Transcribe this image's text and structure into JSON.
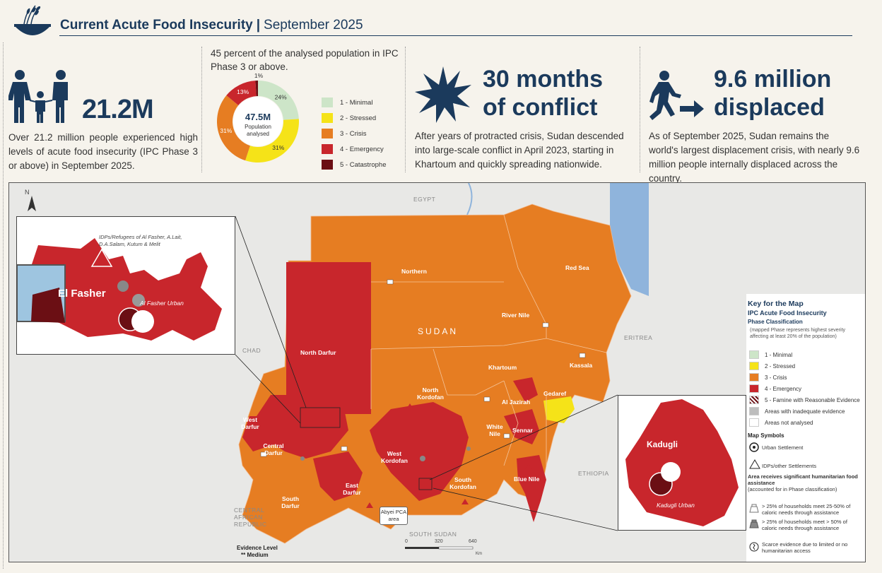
{
  "header": {
    "title": "Current Acute Food Insecurity",
    "separator": "|",
    "date": "September 2025"
  },
  "icons": {
    "logo": "wheat-bowl-icon",
    "family": "family-icon",
    "conflict": "explosion-icon",
    "displaced": "walking-person-icon"
  },
  "kpis": {
    "people": {
      "value": "21.2M",
      "text": "Over 21.2 million people experienced high levels of acute food insecurity (IPC Phase 3 or above) in September 2025."
    },
    "analysed": {
      "lead": "45 percent of the analysed population in IPC Phase 3 or above.",
      "center_value": "47.5M",
      "center_label_1": "Population",
      "center_label_2": "analysed",
      "top_label": "1%"
    },
    "conflict": {
      "value_line1": "30 months",
      "value_line2": "of conflict",
      "text": "After years of protracted crisis, Sudan descended into large-scale conflict in April 2023, starting in Khartoum and quickly spreading nationwide."
    },
    "displaced": {
      "value_line1": "9.6 million",
      "value_line2": "displaced",
      "text": "As of September 2025, Sudan remains the world's largest displacement crisis, with nearly 9.6 million people internally displaced across the country."
    }
  },
  "chart_data": {
    "type": "pie",
    "title": "",
    "categories": [
      "1 - Minimal",
      "2 - Stressed",
      "3 - Crisis",
      "4 - Emergency",
      "5 - Catastrophe"
    ],
    "values": [
      24,
      31,
      31,
      13,
      1
    ],
    "value_labels": [
      "24%",
      "31%",
      "31%",
      "13%",
      "1%"
    ],
    "colors": [
      "#cde5c8",
      "#f5e318",
      "#e67d22",
      "#c8262c",
      "#6b0f14"
    ]
  },
  "map": {
    "country_labels": {
      "egypt": "EGYPT",
      "chad": "CHAD",
      "eritrea": "ERITREA",
      "ethiopia": "ETHIOPIA",
      "car": "CENTRAL AFRICAN REPUBLIC",
      "south_sudan": "SOUTH SUDAN",
      "sudan": "SUDAN"
    },
    "north_arrow": "N",
    "state_labels": {
      "northern": "Northern",
      "red_sea": "Red Sea",
      "river_nile": "River Nile",
      "north_darfur": "North Darfur",
      "khartoum": "Khartoum",
      "kassala": "Kassala",
      "gedaref": "Gedaref",
      "north_kordofan": "North Kordofan",
      "al_jazirah": "Al Jazirah",
      "west_darfur": "West Darfur",
      "central_darfur": "Central Darfur",
      "white_nile": "White Nile",
      "sennar": "Sennar",
      "west_kordofan": "West Kordofan",
      "south_kordofan": "South Kordofan",
      "blue_nile": "Blue Nile",
      "east_darfur": "East Darfur",
      "south_darfur": "South Darfur"
    },
    "abyei": "Abyei PCA area",
    "evidence": "Evidence Level",
    "evidence_value": "** Medium",
    "scale": [
      "0",
      "320",
      "640"
    ],
    "scale_unit": "Km",
    "inset1": {
      "idp_label": "IDPs/Refugees of Al Fasher, A.Lait, D.A.Salam, Kutum & Melit",
      "city": "El Fasher",
      "urban": "Al Fasher Urban"
    },
    "inset2": {
      "city": "Kadugli",
      "urban": "Kadugli Urban"
    }
  },
  "key": {
    "title": "Key for the Map",
    "subtitle": "IPC Acute Food Insecurity",
    "subtitle2": "Phase Classification",
    "note": "(mapped Phase represents highest severity affecting at least 20% of the population)",
    "phases": [
      {
        "label": "1 - Minimal",
        "color": "#cde5c8"
      },
      {
        "label": "2 - Stressed",
        "color": "#f5e318"
      },
      {
        "label": "3 - Crisis",
        "color": "#e67d22"
      },
      {
        "label": "4 - Emergency",
        "color": "#c8262c"
      },
      {
        "label": "5 - Famine with Reasonable Evidence",
        "color": "#6b0f14"
      },
      {
        "label": "Areas with inadequate evidence",
        "color": "#bdbdbd"
      },
      {
        "label": "Areas not analysed",
        "color": "#ffffff"
      }
    ],
    "map_symbols": "Map Symbols",
    "urban_settlement": "Urban Settlement",
    "idp_settlements": "IDPs/other Settlements",
    "assistance_title": "Area receives significant humanitarian food assistance",
    "assistance_note": "(accounted for in Phase classification)",
    "assist_25_50": "> 25% of households meet 25-50% of caloric needs through assistance",
    "assist_50": "> 25% of households meet > 50% of caloric needs through assistance",
    "scarce": "Scarce evidence due to limited or no humanitarian access"
  }
}
